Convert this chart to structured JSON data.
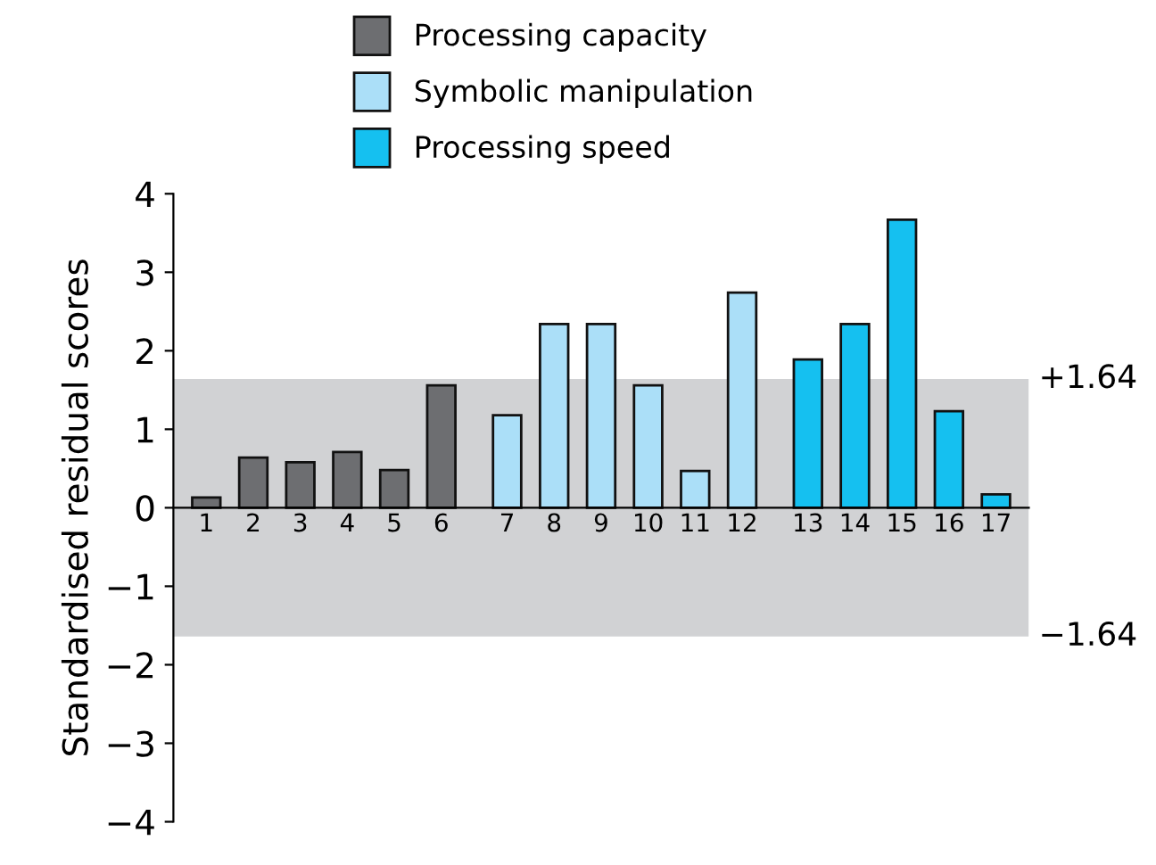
{
  "chart_data": {
    "type": "bar",
    "ylabel": "Standardised residual scores",
    "categories": [
      "1",
      "2",
      "3",
      "4",
      "5",
      "6",
      "7",
      "8",
      "9",
      "10",
      "11",
      "12",
      "13",
      "14",
      "15",
      "16",
      "17"
    ],
    "series": [
      {
        "name": "Processing capacity",
        "color": "#6d6e71",
        "values": [
          0.13,
          0.64,
          0.58,
          0.71,
          0.48,
          1.56,
          null,
          null,
          null,
          null,
          null,
          null,
          null,
          null,
          null,
          null,
          null
        ]
      },
      {
        "name": "Symbolic manipulation",
        "color": "#abdff8",
        "values": [
          null,
          null,
          null,
          null,
          null,
          null,
          1.18,
          2.34,
          2.34,
          1.56,
          0.47,
          2.74,
          null,
          null,
          null,
          null,
          null
        ]
      },
      {
        "name": "Processing speed",
        "color": "#15c0f0",
        "values": [
          null,
          null,
          null,
          null,
          null,
          null,
          null,
          null,
          null,
          null,
          null,
          null,
          1.89,
          2.34,
          3.67,
          1.23,
          0.17
        ]
      }
    ],
    "ylim": [
      -4,
      4
    ],
    "yticks": [
      {
        "value": -4,
        "label": "−4"
      },
      {
        "value": -3,
        "label": "−3"
      },
      {
        "value": -2,
        "label": "−2"
      },
      {
        "value": -1,
        "label": "−1"
      },
      0,
      1,
      2,
      3,
      4
    ],
    "bands": [
      {
        "axis": "y",
        "from": 0,
        "to": 1.64,
        "color": "#d1d2d4",
        "label": "+1.64"
      },
      {
        "axis": "y",
        "from": -1.64,
        "to": 0,
        "color": "#d1d2d4",
        "label": "−1.64"
      }
    ],
    "legend": "top",
    "grid": false
  }
}
